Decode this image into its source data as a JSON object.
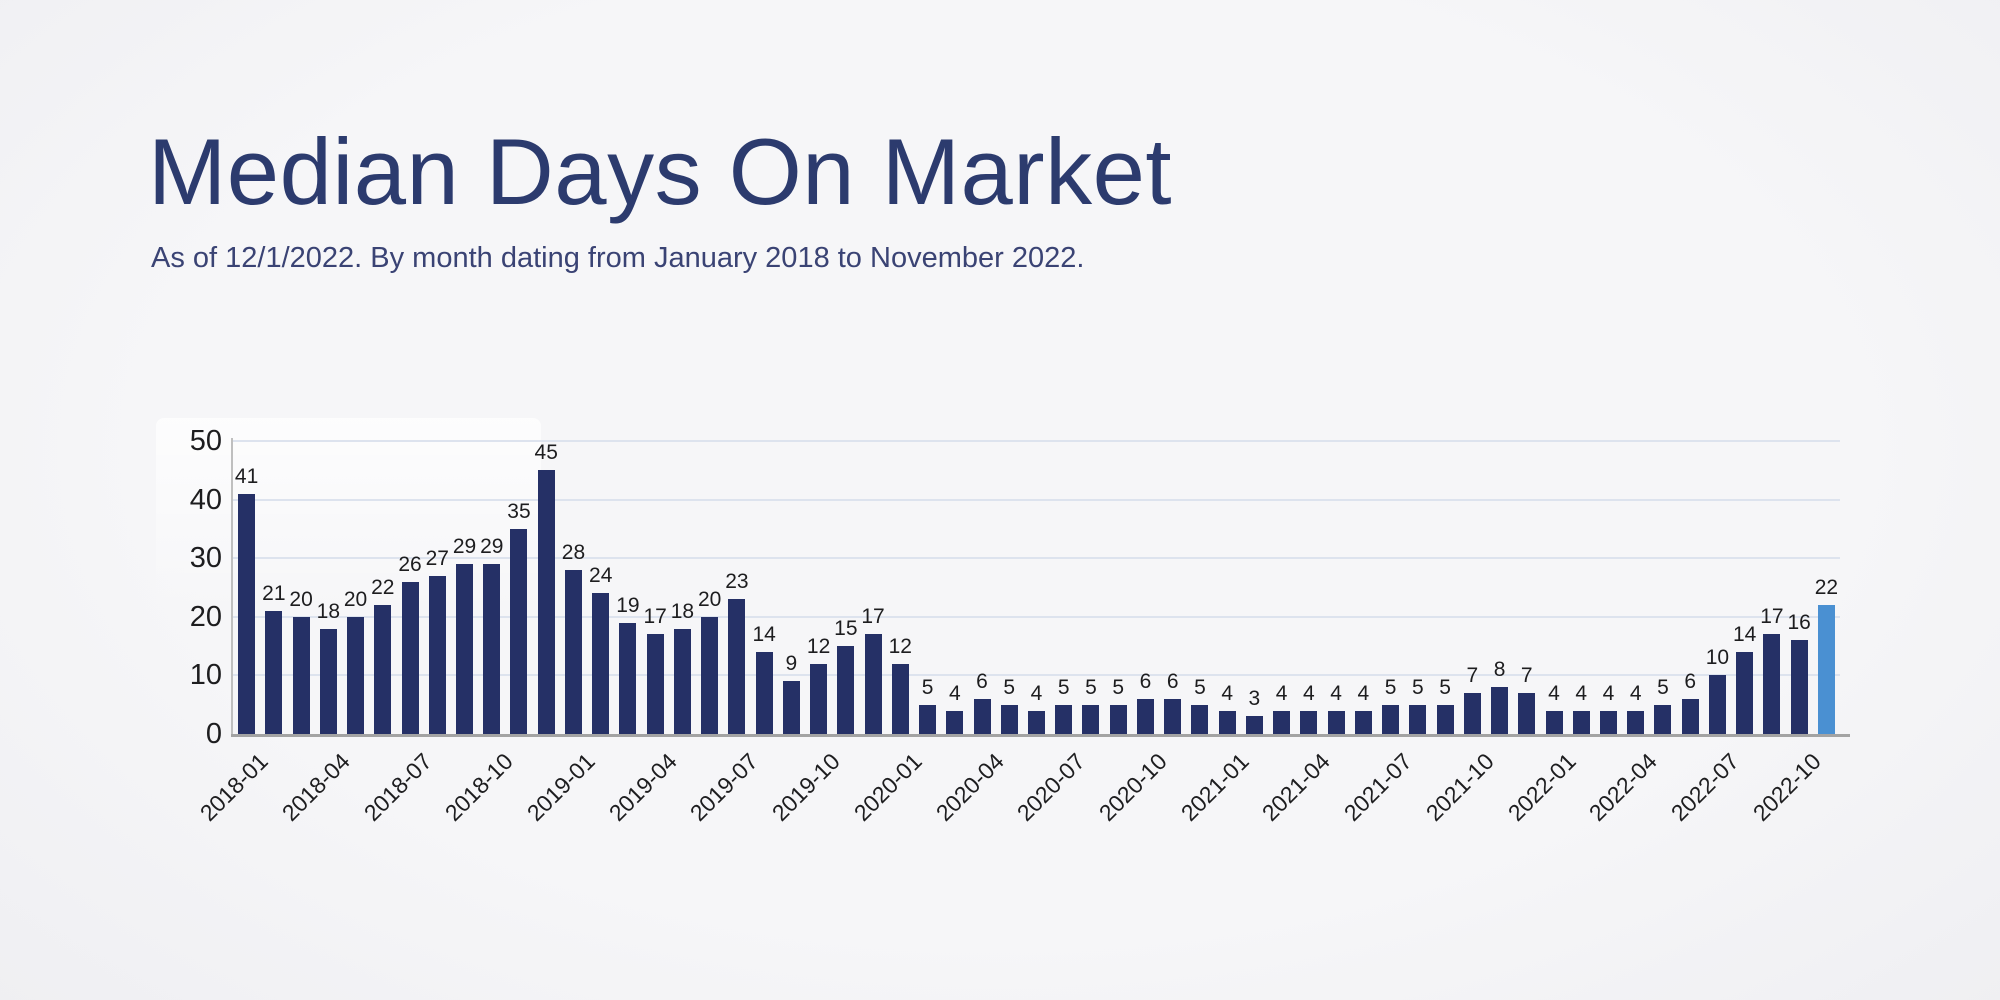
{
  "header": {
    "title": "Median Days On Market",
    "subtitle": "As of 12/1/2022. By month dating from January 2018 to November 2022."
  },
  "colors": {
    "background": "#f4f4f6",
    "title": "#2c3b6e",
    "subtitle": "#3a4374",
    "bar": "#253066",
    "bar_highlight": "#4a90d2",
    "gridline": "#dde3ee",
    "x_axis": "#a3a3a3",
    "y_axis": "#bfbfbf",
    "tick_label": "#1d1d1f"
  },
  "chart_data": {
    "type": "bar",
    "title": "Median Days On Market",
    "subtitle": "As of 12/1/2022. By month dating from January 2018 to November 2022.",
    "xlabel": "",
    "ylabel": "",
    "ylim": [
      0,
      50
    ],
    "y_ticks": [
      0,
      10,
      20,
      30,
      40,
      50
    ],
    "grid": "horizontal",
    "legend": "none",
    "bar_value_labels": true,
    "highlight_index": 58,
    "x": [
      "2018-01",
      "2018-02",
      "2018-03",
      "2018-04",
      "2018-05",
      "2018-06",
      "2018-07",
      "2018-08",
      "2018-09",
      "2018-10",
      "2018-11",
      "2018-12",
      "2019-01",
      "2019-02",
      "2019-03",
      "2019-04",
      "2019-05",
      "2019-06",
      "2019-07",
      "2019-08",
      "2019-09",
      "2019-10",
      "2019-11",
      "2019-12",
      "2020-01",
      "2020-02",
      "2020-03",
      "2020-04",
      "2020-05",
      "2020-06",
      "2020-07",
      "2020-08",
      "2020-09",
      "2020-10",
      "2020-11",
      "2020-12",
      "2021-01",
      "2021-02",
      "2021-03",
      "2021-04",
      "2021-05",
      "2021-06",
      "2021-07",
      "2021-08",
      "2021-09",
      "2021-10",
      "2021-11",
      "2021-12",
      "2022-01",
      "2022-02",
      "2022-03",
      "2022-04",
      "2022-05",
      "2022-06",
      "2022-07",
      "2022-08",
      "2022-09",
      "2022-10",
      "2022-11"
    ],
    "values": [
      41,
      21,
      20,
      18,
      20,
      22,
      26,
      27,
      29,
      29,
      35,
      45,
      28,
      24,
      19,
      17,
      18,
      20,
      23,
      14,
      9,
      12,
      15,
      17,
      12,
      5,
      4,
      6,
      5,
      4,
      5,
      5,
      5,
      6,
      6,
      5,
      4,
      3,
      4,
      4,
      4,
      4,
      5,
      5,
      5,
      7,
      8,
      7,
      4,
      4,
      4,
      4,
      5,
      6,
      10,
      14,
      17,
      16,
      22
    ],
    "x_tick_step": 3,
    "x_tick_labels": [
      "2018-01",
      "2018-04",
      "2018-07",
      "2018-10",
      "2019-01",
      "2019-04",
      "2019-07",
      "2019-10",
      "2020-01",
      "2020-04",
      "2020-07",
      "2020-10",
      "2021-01",
      "2021-04",
      "2021-07",
      "2021-10",
      "2022-01",
      "2022-04",
      "2022-07",
      "2022-10"
    ]
  }
}
